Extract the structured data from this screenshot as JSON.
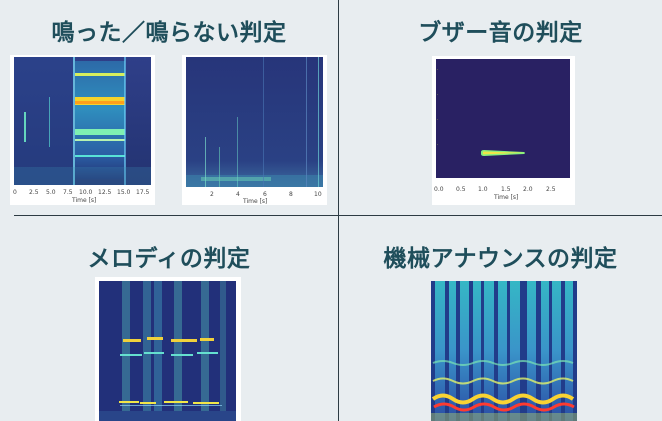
{
  "panels": {
    "top_left": {
      "title": "鳴った／鳴らない判定",
      "left_plot": {
        "xlabel": "Time [s]",
        "ticks": [
          "0",
          "2.5",
          "5.0",
          "7.5",
          "10.0",
          "12.5",
          "15.0",
          "17.5"
        ]
      },
      "right_plot": {
        "xlabel": "Time [s]",
        "ticks": [
          "2",
          "4",
          "6",
          "8",
          "10"
        ]
      }
    },
    "top_right": {
      "title": "ブザー音の判定",
      "plot": {
        "xlabel": "Time [s]",
        "ticks": [
          "0.0",
          "0.5",
          "1.0",
          "1.5",
          "2.0",
          "2.5"
        ]
      }
    },
    "bottom_left": {
      "title": "メロディの判定"
    },
    "bottom_right": {
      "title": "機械アナウンスの判定"
    }
  },
  "colors": {
    "background": "#e8edf0",
    "title": "#1f4e5b",
    "divider": "#2d3b43",
    "plot_bg": "#1f2c6f",
    "accent_yellow": "#f4d32b",
    "accent_cyan": "#55d6c4",
    "accent_red": "#ff3b30"
  }
}
